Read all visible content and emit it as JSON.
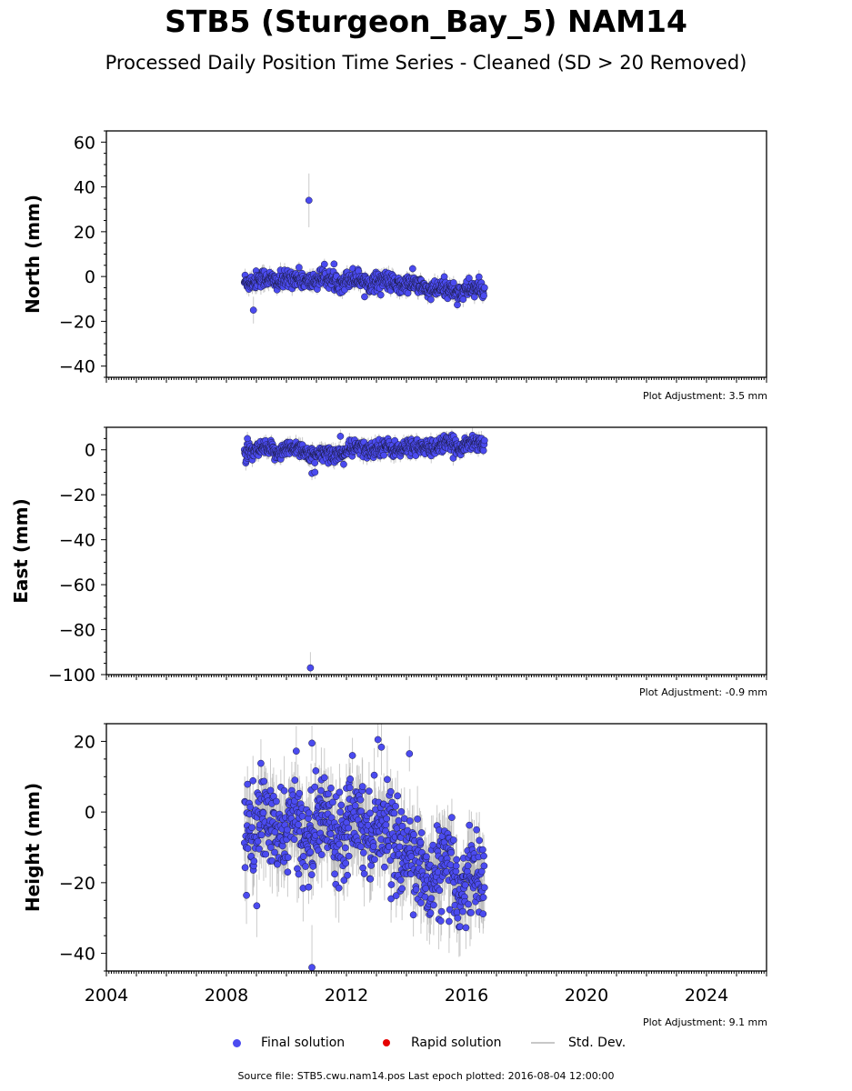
{
  "title": "STB5 (Sturgeon_Bay_5) NAM14",
  "subtitle": "Processed Daily Position Time Series - Cleaned (SD > 20 Removed)",
  "legend": {
    "final": "Final solution",
    "rapid": "Rapid solution",
    "std": "Std. Dev."
  },
  "footer": "Source file: STB5.cwu.nam14.pos  Last epoch plotted: 2016-08-04 12:00:00",
  "colors": {
    "final": "#4b4bf0",
    "rapid": "#e60000",
    "std": "#b4b4b4"
  },
  "chart_data": [
    {
      "type": "scatter",
      "ylabel": "North (mm)",
      "adjustment": "Plot Adjustment: 3.5 mm",
      "xlim": [
        2004.0,
        2026.0
      ],
      "ylim": [
        -45,
        65
      ],
      "yticks": [
        -40,
        -20,
        0,
        20,
        40,
        60
      ],
      "xticks": [
        2004,
        2008,
        2012,
        2016,
        2020,
        2024
      ],
      "show_x_tick_labels": false,
      "data_start": 2008.6,
      "data_end": 2016.6,
      "trend": [
        [
          2008.6,
          -1.5
        ],
        [
          2010.5,
          -1.5
        ],
        [
          2012.5,
          -1.5
        ],
        [
          2014.0,
          -3.5
        ],
        [
          2015.0,
          -6.0
        ],
        [
          2016.6,
          -6.0
        ]
      ],
      "noise_sd": 2.0,
      "std_dev_len": 2.5,
      "outliers": [
        [
          2010.75,
          34.0,
          12.0
        ],
        [
          2008.9,
          -15.0,
          6.0
        ]
      ]
    },
    {
      "type": "scatter",
      "ylabel": "East (mm)",
      "adjustment": "Plot Adjustment: -0.9 mm",
      "xlim": [
        2004.0,
        2026.0
      ],
      "ylim": [
        -100,
        10
      ],
      "yticks": [
        -100,
        -80,
        -60,
        -40,
        -20,
        0
      ],
      "xticks": [
        2004,
        2008,
        2012,
        2016,
        2020,
        2024
      ],
      "show_x_tick_labels": false,
      "data_start": 2008.6,
      "data_end": 2016.6,
      "trend": [
        [
          2008.6,
          -1.0
        ],
        [
          2010.5,
          0.5
        ],
        [
          2011.0,
          -3.0
        ],
        [
          2012.5,
          0.5
        ],
        [
          2014.5,
          1.0
        ],
        [
          2016.6,
          3.0
        ]
      ],
      "noise_sd": 1.8,
      "std_dev_len": 2.5,
      "outliers": [
        [
          2010.8,
          -97.0,
          7.0
        ],
        [
          2010.85,
          -10.5,
          3.0
        ],
        [
          2010.95,
          -10.0,
          3.0
        ],
        [
          2008.7,
          5.0,
          3.0
        ],
        [
          2011.8,
          6.0,
          3.0
        ]
      ]
    },
    {
      "type": "scatter",
      "ylabel": "Height (mm)",
      "adjustment": "Plot Adjustment: 9.1 mm",
      "xlim": [
        2004.0,
        2026.0
      ],
      "ylim": [
        -45,
        25
      ],
      "yticks": [
        -40,
        -20,
        0,
        20
      ],
      "xticks": [
        2004,
        2008,
        2012,
        2016,
        2020,
        2024
      ],
      "show_x_tick_labels": true,
      "data_start": 2008.6,
      "data_end": 2016.6,
      "trend": [
        [
          2008.6,
          -4.0
        ],
        [
          2010.5,
          -5.0
        ],
        [
          2012.5,
          -2.0
        ],
        [
          2013.5,
          -6.0
        ],
        [
          2014.5,
          -17.0
        ],
        [
          2016.6,
          -20.0
        ]
      ],
      "noise_sd": 6.0,
      "std_dev_len": 7.0,
      "outliers": [
        [
          2010.85,
          -44.0,
          12.0
        ],
        [
          2010.85,
          19.5,
          5.0
        ],
        [
          2013.05,
          20.5,
          5.0
        ],
        [
          2014.1,
          16.5,
          5.0
        ],
        [
          2012.2,
          16.0,
          5.0
        ]
      ]
    }
  ]
}
